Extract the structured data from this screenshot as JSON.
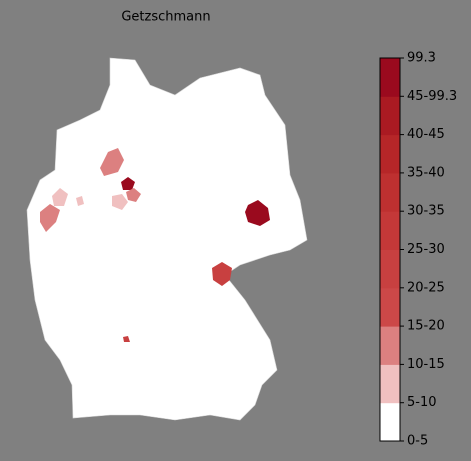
{
  "title": "Getzschmann",
  "legend": {
    "labels": [
      "0-5",
      "5-10",
      "10-15",
      "15-20",
      "20-25",
      "25-30",
      "30-35",
      "35-40",
      "40-45",
      "45-99.3",
      "99.3"
    ],
    "colors": [
      "#ffffff",
      "#f0c0c0",
      "#dc8080",
      "#cc4848",
      "#c84040",
      "#c43838",
      "#be3030",
      "#b62628",
      "#aa1a22",
      "#9a0a1e"
    ]
  }
}
